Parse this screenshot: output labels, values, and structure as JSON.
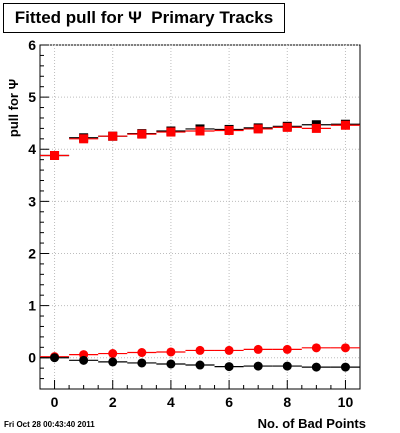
{
  "chart_data": {
    "type": "scatter",
    "title": "Fitted pull for Ψ  Primary Tracks",
    "xlabel": "No. of Bad Points",
    "ylabel": "pull for Ψ",
    "xlim": [
      -0.5,
      10.5
    ],
    "ylim": [
      -0.6,
      6
    ],
    "x_ticks": [
      0,
      2,
      4,
      6,
      8,
      10
    ],
    "y_ticks": [
      0,
      1,
      2,
      3,
      4,
      5,
      6
    ],
    "grid": true,
    "series": [
      {
        "marker": "square",
        "color": "#000000",
        "x": [
          0,
          1,
          2,
          3,
          4,
          5,
          6,
          7,
          8,
          9,
          10
        ],
        "y": [
          3.88,
          4.22,
          4.25,
          4.3,
          4.35,
          4.39,
          4.38,
          4.41,
          4.44,
          4.47,
          4.48
        ]
      },
      {
        "marker": "square",
        "color": "#ff0000",
        "x": [
          0,
          1,
          2,
          3,
          4,
          5,
          6,
          7,
          8,
          9,
          10
        ],
        "y": [
          3.88,
          4.2,
          4.25,
          4.29,
          4.33,
          4.35,
          4.36,
          4.39,
          4.42,
          4.4,
          4.46
        ]
      },
      {
        "marker": "circle",
        "color": "#ff0000",
        "x": [
          0,
          1,
          2,
          3,
          4,
          5,
          6,
          7,
          8,
          9,
          10
        ],
        "y": [
          0.02,
          0.06,
          0.08,
          0.1,
          0.11,
          0.14,
          0.14,
          0.16,
          0.16,
          0.19,
          0.19
        ]
      },
      {
        "marker": "circle",
        "color": "#000000",
        "x": [
          0,
          1,
          2,
          3,
          4,
          5,
          6,
          7,
          8,
          9,
          10
        ],
        "y": [
          0.0,
          -0.05,
          -0.08,
          -0.1,
          -0.12,
          -0.14,
          -0.17,
          -0.16,
          -0.16,
          -0.18,
          -0.18
        ]
      }
    ]
  },
  "footer": "Fri Oct 28 00:43:40 2011"
}
